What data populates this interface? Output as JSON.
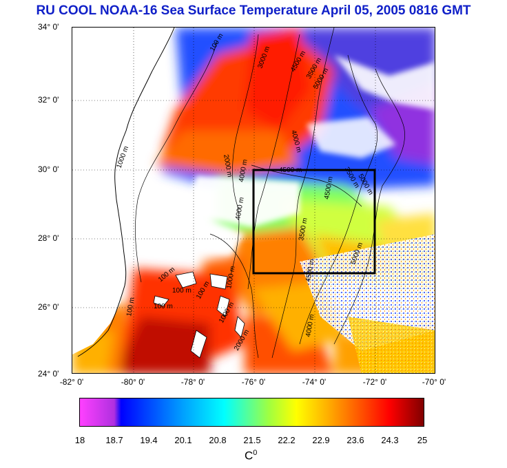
{
  "title": "RU COOL  NOAA-16 Sea Surface Temperature April 05, 2005 0816 GMT",
  "map": {
    "lat_labels": [
      "34° 0'",
      "32° 0'",
      "30° 0'",
      "28° 0'",
      "26° 0'",
      "24° 0'"
    ],
    "lon_labels": [
      "-82° 0'",
      "-80° 0'",
      "-78° 0'",
      "-76° 0'",
      "-74° 0'",
      "-72° 0'",
      "-70° 0'"
    ],
    "lat_range": [
      24,
      34
    ],
    "lon_range": [
      -82,
      -70
    ],
    "study_box": {
      "lon": [
        -76,
        -72
      ],
      "lat": [
        27,
        30
      ]
    },
    "contour_labels": [
      "100 m",
      "3000 m",
      "4500 m",
      "5000 m",
      "4000 m",
      "3500 m",
      "1000 m",
      "2000 m",
      "4000 m",
      "4500 m",
      "3500 m",
      "5000 m",
      "4500 m",
      "100 m",
      "100 m",
      "100 m",
      "100 m",
      "1000 m",
      "100 m",
      "4000 m",
      "3500 m",
      "1000 m",
      "2000 m",
      "4500 m",
      "5000 m",
      "4000 m"
    ]
  },
  "colorbar": {
    "ticks": [
      "18",
      "18.7",
      "19.4",
      "20.1",
      "20.8",
      "21.5",
      "22.2",
      "22.9",
      "23.6",
      "24.3",
      "25"
    ],
    "min": 18,
    "max": 25,
    "unit": "C",
    "unit_sup": "0",
    "colors": [
      "#ff00ff",
      "#0000ff",
      "#00aaff",
      "#00ffff",
      "#80ff80",
      "#ffff00",
      "#ffaa00",
      "#ff5500",
      "#ff0000",
      "#c00000",
      "#800000"
    ]
  }
}
